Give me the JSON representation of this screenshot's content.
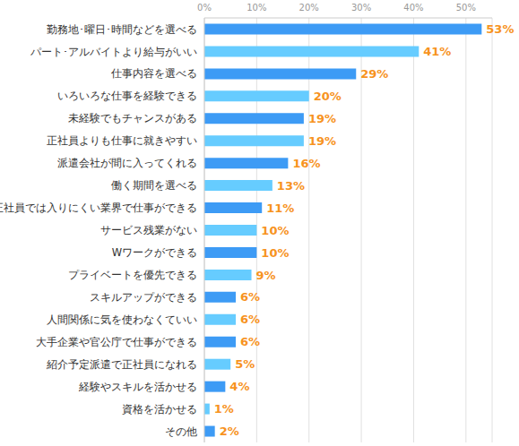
{
  "chart_data": {
    "type": "bar",
    "orientation": "horizontal",
    "categories": [
      "勤務地･曜日･時間などを選べる",
      "パート･アルバイトより給与がいい",
      "仕事内容を選べる",
      "いろいろな仕事を経験できる",
      "未経験でもチャンスがある",
      "正社員よりも仕事に就きやすい",
      "派遣会社が間に入ってくれる",
      "働く期間を選べる",
      "正社員では入りにくい業界で仕事ができる",
      "サービス残業がない",
      "Wワークができる",
      "プライベートを優先できる",
      "スキルアップができる",
      "人間関係に気を使わなくていい",
      "大手企業や官公庁で仕事ができる",
      "紹介予定派遣で正社員になれる",
      "経験やスキルを活かせる",
      "資格を活かせる",
      "その他"
    ],
    "values": [
      53,
      41,
      29,
      20,
      19,
      19,
      16,
      13,
      11,
      10,
      10,
      9,
      6,
      6,
      6,
      5,
      4,
      1,
      2
    ],
    "value_labels": [
      "53%",
      "41%",
      "29%",
      "20%",
      "19%",
      "19%",
      "16%",
      "13%",
      "11%",
      "10%",
      "10%",
      "9%",
      "6%",
      "6%",
      "6%",
      "5%",
      "4%",
      "1%",
      "2%"
    ],
    "colors": [
      "#3d9bf5",
      "#66ccff",
      "#3d9bf5",
      "#66ccff",
      "#3d9bf5",
      "#66ccff",
      "#3d9bf5",
      "#66ccff",
      "#3d9bf5",
      "#66ccff",
      "#3d9bf5",
      "#66ccff",
      "#3d9bf5",
      "#66ccff",
      "#3d9bf5",
      "#66ccff",
      "#3d9bf5",
      "#66ccff",
      "#3d9bf5"
    ],
    "xlim": [
      0,
      55
    ],
    "xticks": [
      {
        "value": 0,
        "label": "0%"
      },
      {
        "value": 10,
        "label": "10%"
      },
      {
        "value": 20,
        "label": "20%"
      },
      {
        "value": 30,
        "label": "30%"
      },
      {
        "value": 40,
        "label": "40%"
      },
      {
        "value": 50,
        "label": "50%"
      }
    ],
    "grid": true,
    "data_labels": true
  }
}
